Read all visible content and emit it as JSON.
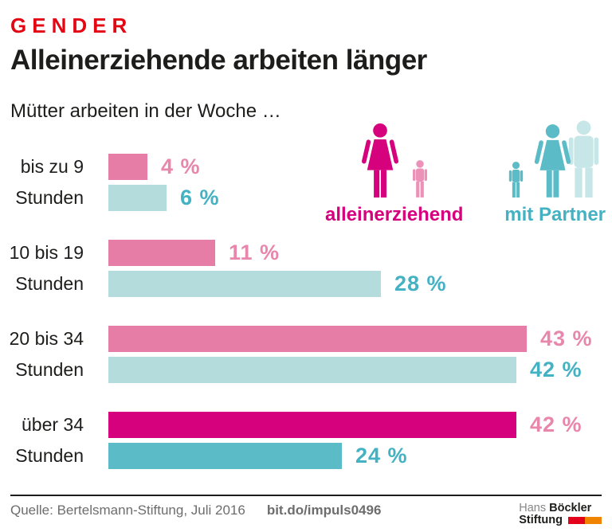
{
  "header": {
    "kicker": "GENDER",
    "title": "Alleinerziehende arbeiten länger",
    "subtitle": "Mütter arbeiten in der Woche …"
  },
  "legend": {
    "single_label": "alleinerziehend",
    "partner_label": "mit Partner"
  },
  "chart_data": {
    "type": "bar",
    "orientation": "horizontal",
    "title": "Alleinerziehende arbeiten länger",
    "subtitle": "Mütter arbeiten in der Woche …",
    "unit": "%",
    "categories": [
      "bis zu 9 Stunden",
      "10 bis 19 Stunden",
      "20 bis 34 Stunden",
      "über 34 Stunden"
    ],
    "category_lines": [
      [
        "bis zu 9",
        "Stunden"
      ],
      [
        "10 bis 19",
        "Stunden"
      ],
      [
        "20 bis 34",
        "Stunden"
      ],
      [
        "über 34",
        "Stunden"
      ]
    ],
    "series": [
      {
        "name": "alleinerziehend",
        "values": [
          4,
          11,
          43,
          42
        ]
      },
      {
        "name": "mit Partner",
        "values": [
          6,
          28,
          42,
          24
        ]
      }
    ],
    "value_labels": [
      [
        "4 %",
        "6 %"
      ],
      [
        "11 %",
        "28 %"
      ],
      [
        "43 %",
        "42 %"
      ],
      [
        "42 %",
        "24 %"
      ]
    ],
    "highlight_group_index": 3,
    "xlim": [
      0,
      50
    ],
    "grid": false,
    "legend_position": "top-right"
  },
  "colors": {
    "kicker_red": "#e30613",
    "text_dark": "#1d1d1b",
    "pink_light": "#e67da7",
    "teal_light": "#b4dcdd",
    "pink_strong": "#d6027d",
    "teal_strong": "#5bbcc7",
    "pink_text": "#e886ac",
    "teal_text": "#44b2c2",
    "child_pink": "#ec92b9",
    "man_teal": "#c7e6e8",
    "footer_gray": "#6d6d6d",
    "logo_gray": "#878787",
    "logo_red": "#e2001a",
    "logo_orange": "#f08300"
  },
  "footer": {
    "source": "Quelle: Bertelsmann-Stiftung, Juli 2016",
    "link": "bit.do/impuls0496",
    "logo": {
      "hans": "Hans",
      "boeckler": "Böckler",
      "stiftung": "Stiftung"
    }
  }
}
